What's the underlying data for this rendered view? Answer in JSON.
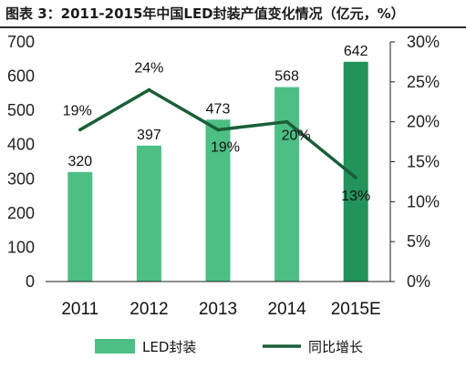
{
  "title": "图表 3：2011-2015年中国LED封装产值变化情况（亿元，%）",
  "chart_data": {
    "type": "bar",
    "categories": [
      "2011",
      "2012",
      "2013",
      "2014",
      "2015E"
    ],
    "series": [
      {
        "name": "LED封装",
        "type": "bar",
        "axis": "left",
        "values": [
          320,
          397,
          473,
          568,
          642
        ],
        "labels": [
          "320",
          "397",
          "473",
          "568",
          "642"
        ],
        "color": "#4dbf85",
        "highlight_color": "#22935a"
      },
      {
        "name": "同比增长",
        "type": "line",
        "axis": "right",
        "values": [
          19,
          24,
          19,
          20,
          13
        ],
        "labels": [
          "19%",
          "24%",
          "19%",
          "20%",
          "13%"
        ],
        "color": "#1a5e38"
      }
    ],
    "ylim": [
      0,
      700
    ],
    "y2lim": [
      0,
      30
    ],
    "yticks": [
      "0",
      "100",
      "200",
      "300",
      "400",
      "500",
      "600",
      "700"
    ],
    "y2ticks": [
      "0%",
      "5%",
      "10%",
      "15%",
      "20%",
      "25%",
      "30%"
    ],
    "grid": false,
    "legend_position": "bottom"
  }
}
